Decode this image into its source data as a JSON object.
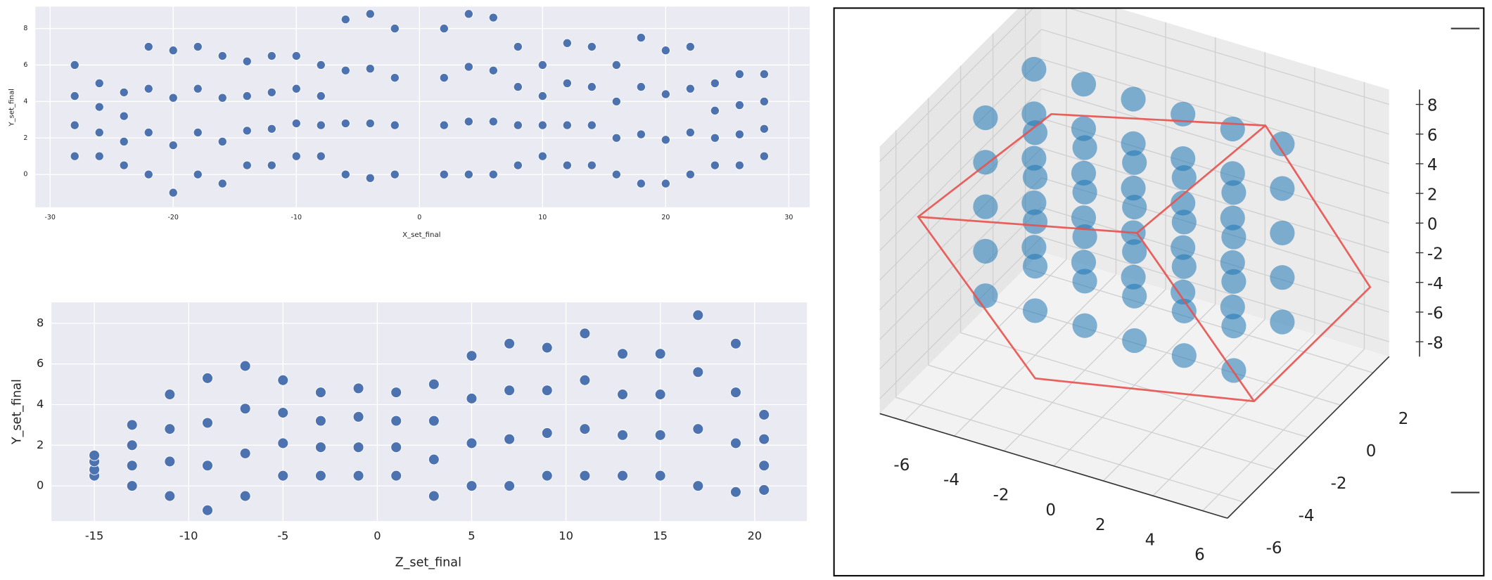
{
  "chart_data": [
    {
      "type": "scatter",
      "xlabel": "X_set_final",
      "ylabel": "Y_set_final",
      "color": "#4c72b0",
      "xlim": [
        -31.2,
        31.7
      ],
      "ylim": [
        -1.8,
        9.2
      ],
      "xticks": [
        -30,
        -20,
        -10,
        0,
        10,
        20,
        30
      ],
      "yticks": [
        0,
        2,
        4,
        6,
        8
      ],
      "grid": true,
      "x": [
        -28,
        -28,
        -28,
        -28,
        -26,
        -26,
        -26,
        -26,
        -24,
        -24,
        -24,
        -24,
        -22,
        -22,
        -22,
        -22,
        -20,
        -20,
        -20,
        -20,
        -18,
        -18,
        -18,
        -18,
        -16,
        -16,
        -16,
        -16,
        -14,
        -14,
        -14,
        -14,
        -12,
        -12,
        -12,
        -12,
        -10,
        -10,
        -10,
        -10,
        -8,
        -8,
        -8,
        -8,
        -6,
        -6,
        -6,
        -6,
        -4,
        -4,
        -4,
        -4,
        -2,
        -2,
        -2,
        -2,
        2,
        2,
        2,
        2,
        4,
        4,
        4,
        4,
        6,
        6,
        6,
        6,
        8,
        8,
        8,
        8,
        10,
        10,
        10,
        10,
        12,
        12,
        12,
        12,
        14,
        14,
        14,
        14,
        16,
        16,
        16,
        16,
        18,
        18,
        18,
        18,
        20,
        20,
        20,
        20,
        22,
        22,
        22,
        22,
        24,
        24,
        24,
        24,
        26,
        26,
        26,
        26,
        28,
        28,
        28,
        28
      ],
      "y": [
        1,
        2.7,
        4.3,
        6,
        1,
        2.3,
        3.7,
        5,
        0.5,
        1.8,
        3.2,
        4.5,
        0,
        2.3,
        4.7,
        7,
        -1,
        1.6,
        4.2,
        6.8,
        0,
        2.3,
        4.7,
        7,
        -0.5,
        1.8,
        4.2,
        6.5,
        0.5,
        2.4,
        4.3,
        6.2,
        0.5,
        2.5,
        4.5,
        6.5,
        1,
        2.8,
        4.7,
        6.5,
        1,
        2.7,
        4.3,
        6,
        0,
        2.8,
        5.7,
        8.5,
        -0.2,
        2.8,
        5.8,
        8.8,
        0,
        2.7,
        5.3,
        8,
        0,
        2.7,
        5.3,
        8,
        0,
        2.9,
        5.9,
        8.8,
        0,
        2.9,
        5.7,
        8.6,
        0.5,
        2.7,
        4.8,
        7,
        1,
        2.7,
        4.3,
        6,
        0.5,
        2.7,
        5,
        7.2,
        0.5,
        2.7,
        4.8,
        7,
        0,
        2,
        4,
        6,
        -0.5,
        2.2,
        4.8,
        7.5,
        -0.5,
        1.9,
        4.4,
        6.8,
        0,
        2.3,
        4.7,
        7,
        0.5,
        2,
        3.5,
        5,
        0.5,
        2.2,
        3.8,
        5.5,
        1,
        2.5,
        4,
        5.5
      ]
    },
    {
      "type": "scatter",
      "xlabel": "Z_set_final",
      "ylabel": "Y_set_final",
      "color": "#4c72b0",
      "xlim": [
        -17.27,
        22.77
      ],
      "ylim": [
        -1.73,
        9.03
      ],
      "xticks": [
        -15,
        -10,
        -5,
        0,
        5,
        10,
        15,
        20
      ],
      "yticks": [
        0,
        2,
        4,
        6,
        8
      ],
      "grid": true,
      "x": [
        -15,
        -15,
        -15,
        -15,
        -13,
        -13,
        -13,
        -13,
        -11,
        -11,
        -11,
        -11,
        -9,
        -9,
        -9,
        -9,
        -7,
        -7,
        -7,
        -7,
        -5,
        -5,
        -5,
        -5,
        -3,
        -3,
        -3,
        -3,
        -1,
        -1,
        -1,
        -1,
        1,
        1,
        1,
        1,
        3,
        3,
        3,
        3,
        5,
        5,
        5,
        5,
        7,
        7,
        7,
        7,
        9,
        9,
        9,
        9,
        11,
        11,
        11,
        11,
        13,
        13,
        13,
        13,
        15,
        15,
        15,
        15,
        17,
        17,
        17,
        17,
        19,
        19,
        19,
        19,
        20.5,
        20.5,
        20.5,
        20.5
      ],
      "y": [
        0.5,
        0.8,
        1.2,
        1.5,
        0,
        1,
        2,
        3,
        -0.5,
        1.2,
        2.8,
        4.5,
        -1.2,
        1,
        3.1,
        5.3,
        -0.5,
        1.6,
        3.8,
        5.9,
        0.5,
        2.1,
        3.6,
        5.2,
        0.5,
        1.9,
        3.2,
        4.6,
        0.5,
        1.9,
        3.4,
        4.8,
        0.5,
        1.9,
        3.2,
        4.6,
        -0.5,
        1.3,
        3.2,
        5,
        0,
        2.1,
        4.3,
        6.4,
        0,
        2.3,
        4.7,
        7,
        0.5,
        2.6,
        4.7,
        6.8,
        0.5,
        2.8,
        5.2,
        7.5,
        0.5,
        2.5,
        4.5,
        6.5,
        0.5,
        2.5,
        4.5,
        6.5,
        0,
        2.8,
        5.6,
        8.4,
        -0.3,
        2.1,
        4.6,
        7,
        -0.2,
        1,
        2.3,
        3.5
      ]
    },
    {
      "type": "scatter3d",
      "color": "#1f77b4",
      "xlim": [
        -7,
        7
      ],
      "ylim": [
        -7,
        3
      ],
      "zlim": [
        -9,
        9
      ],
      "xticks": [
        -6,
        -4,
        -2,
        0,
        2,
        4,
        6
      ],
      "yticks": [
        -6,
        -4,
        -2,
        0,
        2
      ],
      "zticks": [
        -8,
        -6,
        -4,
        -2,
        0,
        2,
        4,
        6,
        8
      ],
      "x": [
        -6,
        -6,
        -6,
        -6,
        -6,
        -6,
        -6,
        -6,
        -6,
        -6,
        -4,
        -4,
        -4,
        -4,
        -4,
        -4,
        -4,
        -4,
        -4,
        -4,
        -2,
        -2,
        -2,
        -2,
        -2,
        -2,
        -2,
        -2,
        -2,
        -2,
        0,
        0,
        0,
        0,
        0,
        0,
        0,
        0,
        0,
        0,
        2,
        2,
        2,
        2,
        2,
        2,
        2,
        2,
        2,
        2,
        4,
        4,
        4,
        4,
        4,
        4,
        4,
        4,
        4,
        4
      ],
      "y": [
        -2,
        -2,
        -2,
        -2,
        -2,
        1,
        1,
        1,
        1,
        1,
        -2,
        -2,
        -2,
        -2,
        -2,
        1,
        1,
        1,
        1,
        1,
        -2,
        -2,
        -2,
        -2,
        -2,
        1,
        1,
        1,
        1,
        1,
        -2,
        -2,
        -2,
        -2,
        -2,
        1,
        1,
        1,
        1,
        1,
        -2,
        -2,
        -2,
        -2,
        -2,
        1,
        1,
        1,
        1,
        1,
        -2,
        -2,
        -2,
        -2,
        -2,
        1,
        1,
        1,
        1,
        1
      ],
      "z": [
        -6,
        -3,
        0,
        3,
        6,
        -6,
        -3,
        0,
        3,
        6,
        -6,
        -3,
        0,
        3,
        6,
        -6,
        -3,
        0,
        3,
        6,
        -6,
        -3,
        0,
        3,
        6,
        -6,
        -3,
        0,
        3,
        6,
        -6,
        -3,
        0,
        3,
        6,
        -6,
        -3,
        0,
        3,
        6,
        -6,
        -3,
        0,
        3,
        6,
        -6,
        -3,
        0,
        3,
        6,
        -6,
        -3,
        0,
        3,
        6,
        -6,
        -3,
        0,
        3,
        6
      ]
    }
  ]
}
